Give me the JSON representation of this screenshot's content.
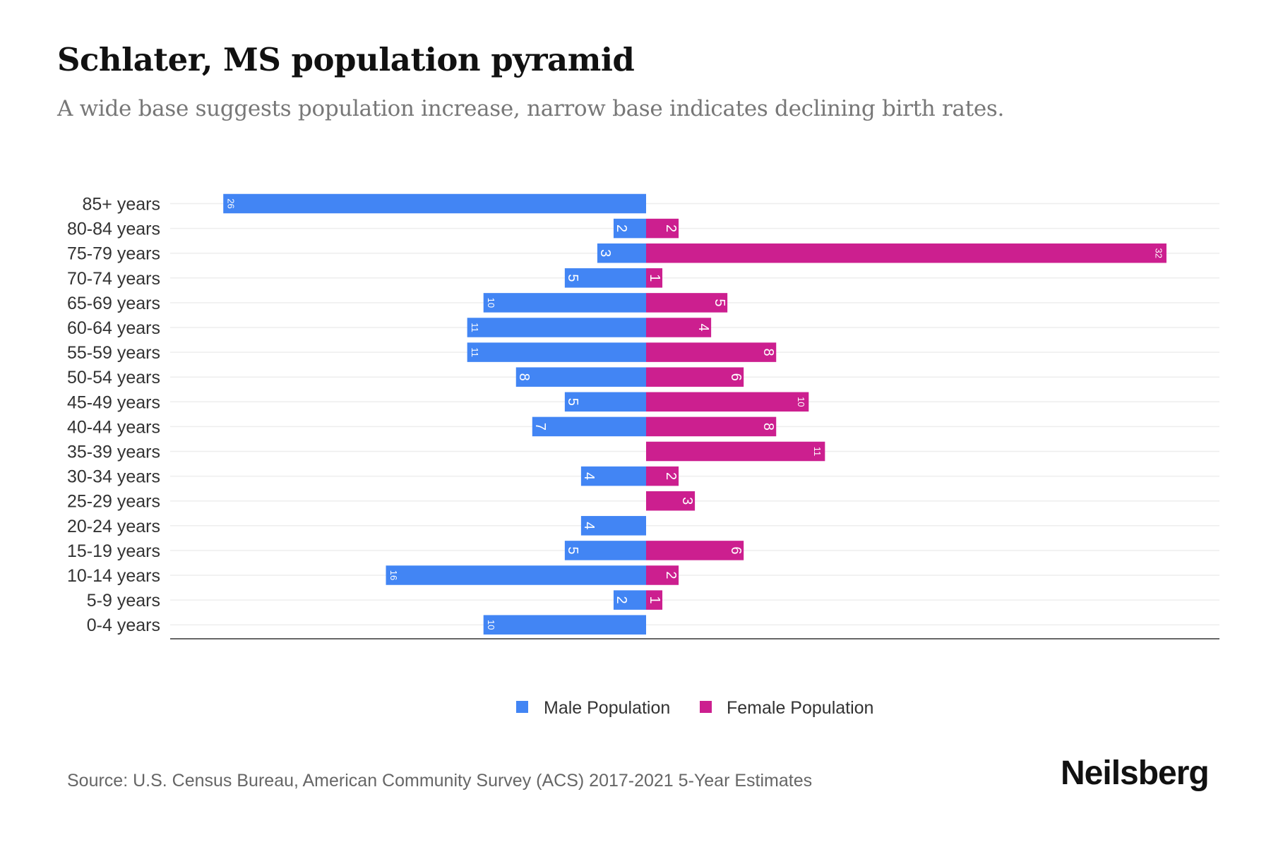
{
  "title": "Schlater, MS population pyramid",
  "subtitle": "A wide base suggests population increase, narrow base indicates declining birth rates.",
  "source": "Source: U.S. Census Bureau, American Community Survey (ACS) 2017-2021 5-Year Estimates",
  "brand": "Neilsberg",
  "chart_data": {
    "type": "bar",
    "orientation": "horizontal-pyramid",
    "categories": [
      "85+ years",
      "80-84 years",
      "75-79 years",
      "70-74 years",
      "65-69 years",
      "60-64 years",
      "55-59 years",
      "50-54 years",
      "45-49 years",
      "40-44 years",
      "35-39 years",
      "30-34 years",
      "25-29 years",
      "20-24 years",
      "15-19 years",
      "10-14 years",
      "5-9 years",
      "0-4 years"
    ],
    "series": [
      {
        "name": "Male Population",
        "color": "#4285F4",
        "side": "left",
        "values": [
          26,
          2,
          3,
          5,
          10,
          11,
          11,
          8,
          5,
          7,
          0,
          4,
          0,
          4,
          5,
          16,
          2,
          10
        ]
      },
      {
        "name": "Female Population",
        "color": "#CC1F8F",
        "side": "right",
        "values": [
          0,
          2,
          32,
          1,
          5,
          4,
          8,
          6,
          10,
          8,
          11,
          2,
          3,
          0,
          6,
          2,
          1,
          0
        ]
      }
    ],
    "legend_position": "bottom-center",
    "grid": true
  }
}
